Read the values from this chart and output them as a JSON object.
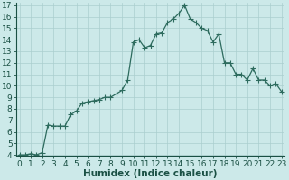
{
  "xlabel": "Humidex (Indice chaleur)",
  "x_values": [
    0,
    0.5,
    1,
    1.5,
    2,
    2.5,
    3,
    3.5,
    4,
    4.5,
    5,
    5.5,
    6,
    6.5,
    7,
    7.5,
    8,
    8.5,
    9,
    9.5,
    10,
    10.5,
    11,
    11.5,
    12,
    12.5,
    13,
    13.5,
    14,
    14.5,
    15,
    15.5,
    16,
    16.5,
    17,
    17.5,
    18,
    18.5,
    19,
    19.5,
    20,
    20.5,
    21,
    21.5,
    22,
    22.5,
    23
  ],
  "y_values": [
    4.0,
    4.0,
    4.1,
    4.0,
    4.2,
    6.6,
    6.5,
    6.5,
    6.5,
    7.5,
    7.8,
    8.5,
    8.6,
    8.7,
    8.8,
    9.0,
    9.0,
    9.3,
    9.6,
    10.5,
    13.8,
    14.0,
    13.3,
    13.5,
    14.5,
    14.6,
    15.5,
    15.8,
    16.3,
    17.0,
    15.8,
    15.5,
    15.0,
    14.8,
    13.8,
    14.5,
    12.0,
    12.0,
    11.0,
    11.0,
    10.5,
    11.5,
    10.5,
    10.5,
    10.0,
    10.2,
    9.5
  ],
  "line_color": "#2d6b5e",
  "marker_color": "#2d6b5e",
  "bg_color": "#cce9e9",
  "grid_color": "#aacece",
  "text_color": "#1a5044",
  "ylim": [
    4,
    17
  ],
  "xlim": [
    -0.3,
    23.3
  ],
  "yticks": [
    4,
    5,
    6,
    7,
    8,
    9,
    10,
    11,
    12,
    13,
    14,
    15,
    16,
    17
  ],
  "xticks": [
    0,
    1,
    2,
    3,
    4,
    5,
    6,
    7,
    8,
    9,
    10,
    11,
    12,
    13,
    14,
    15,
    16,
    17,
    18,
    19,
    20,
    21,
    22,
    23
  ],
  "xlabel_fontsize": 7.5,
  "tick_fontsize": 6.5,
  "marker_size": 2.0,
  "line_width": 0.9
}
